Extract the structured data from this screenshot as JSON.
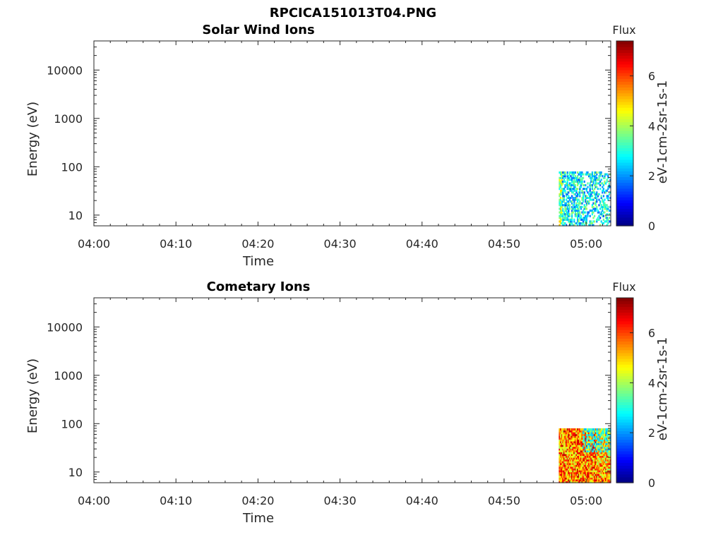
{
  "figure": {
    "title": "RPCICA151013T04.PNG"
  },
  "chart_data": [
    {
      "type": "heatmap",
      "title": "Solar Wind Ions",
      "xlabel": "Time",
      "ylabel": "Energy (eV)",
      "x_ticks": [
        "04:00",
        "04:10",
        "04:20",
        "04:30",
        "04:40",
        "04:50",
        "05:00"
      ],
      "x_range_minutes": [
        0,
        63
      ],
      "y_scale": "log",
      "y_ticks": [
        10,
        100,
        1000,
        10000
      ],
      "y_tick_labels": [
        "10",
        "100",
        "1000",
        "10000"
      ],
      "y_range": [
        6,
        40000
      ],
      "colorbar": {
        "title": "Flux",
        "label": "eV-1cm-2sr-1s-1",
        "range": [
          0,
          7.4
        ],
        "ticks": [
          0,
          2,
          4,
          6
        ],
        "colormap": "jet"
      },
      "data_region": {
        "time_start": "04:56:40",
        "time_end": "05:03:00",
        "energy_min": 6,
        "energy_max": 80,
        "flux_typical": [
          1.5,
          4
        ]
      }
    },
    {
      "type": "heatmap",
      "title": "Cometary Ions",
      "xlabel": "Time",
      "ylabel": "Energy (eV)",
      "x_ticks": [
        "04:00",
        "04:10",
        "04:20",
        "04:30",
        "04:40",
        "04:50",
        "05:00"
      ],
      "x_range_minutes": [
        0,
        63
      ],
      "y_scale": "log",
      "y_ticks": [
        10,
        100,
        1000,
        10000
      ],
      "y_tick_labels": [
        "10",
        "100",
        "1000",
        "10000"
      ],
      "y_range": [
        6,
        40000
      ],
      "colorbar": {
        "title": "Flux",
        "label": "eV-1cm-2sr-1s-1",
        "range": [
          0,
          7.4
        ],
        "ticks": [
          0,
          2,
          4,
          6
        ],
        "colormap": "jet"
      },
      "data_region": {
        "time_start": "04:56:40",
        "time_end": "05:03:00",
        "energy_min": 6,
        "energy_max": 80,
        "flux_typical": [
          4,
          7
        ]
      }
    }
  ]
}
